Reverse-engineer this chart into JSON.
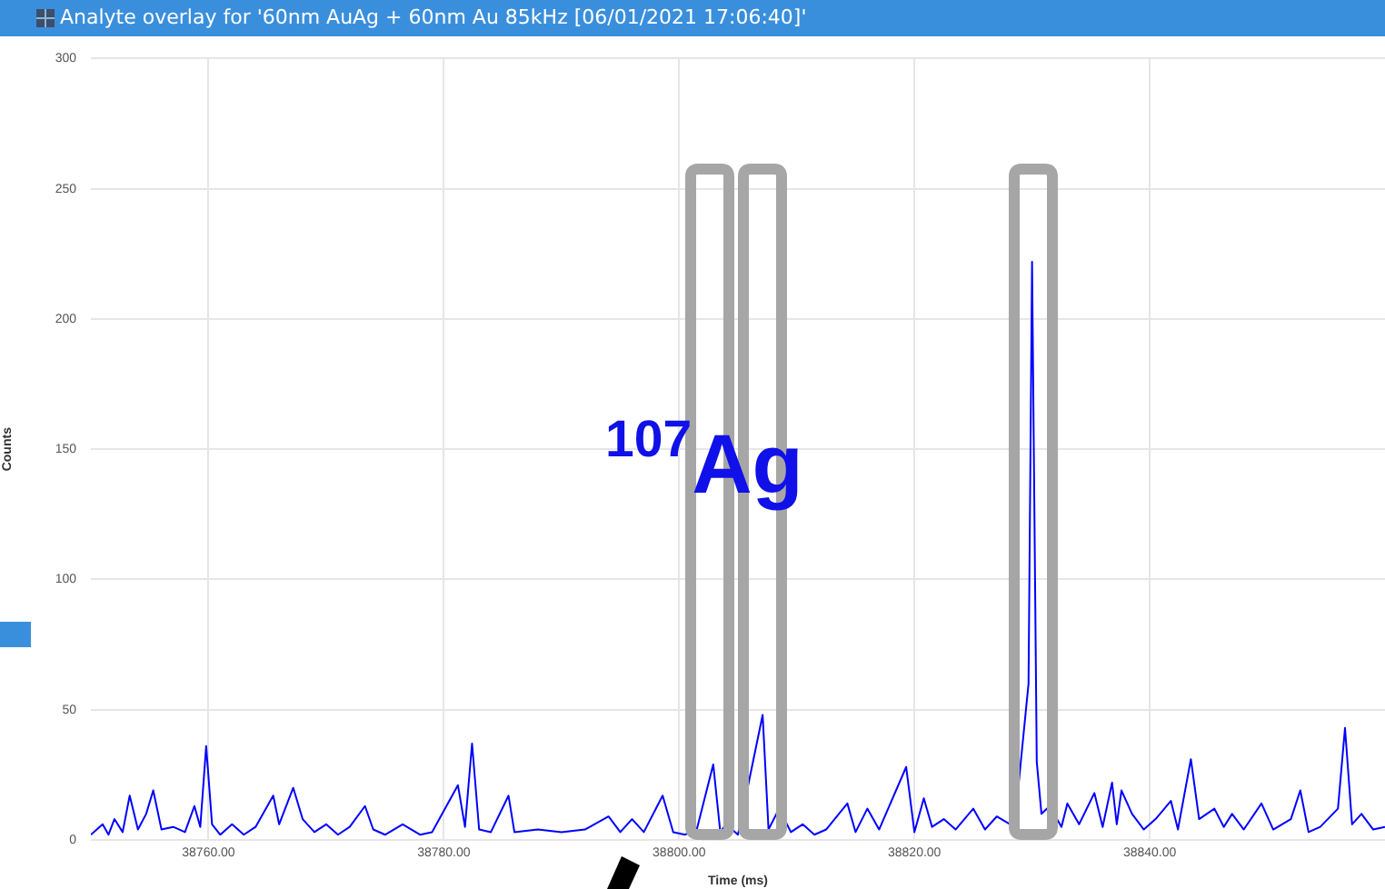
{
  "chart_data": {
    "type": "line",
    "title": "Analyte overlay for '60nm AuAg + 60nm Au 85kHz [06/01/2021 17:06:40]'",
    "xlabel": "Time (ms)",
    "ylabel": "Counts",
    "annotations": [
      "$^{107}$Ag"
    ],
    "x": [
      38750,
      38751,
      38751.5,
      38752,
      38752.7,
      38753.3,
      38754,
      38754.7,
      38755.3,
      38756,
      38757,
      38758,
      38758.8,
      38759.3,
      38759.8,
      38760.3,
      38761,
      38762,
      38763,
      38764,
      38765.5,
      38766,
      38767.2,
      38768,
      38769,
      38770,
      38771,
      38772,
      38773.3,
      38774,
      38775,
      38776.5,
      38778,
      38779,
      38781.2,
      38781.8,
      38782.4,
      38783,
      38784,
      38785.5,
      38786,
      38788,
      38790,
      38792,
      38794,
      38795,
      38796,
      38797,
      38798.6,
      38799.5,
      38800.5,
      38801.5,
      38802.9,
      38803.5,
      38804,
      38805,
      38807.1,
      38807.6,
      38808.5,
      38809.5,
      38810.5,
      38811.5,
      38812.5,
      38814.3,
      38815,
      38816,
      38817,
      38819.3,
      38820,
      38820.8,
      38821.5,
      38822.5,
      38823.5,
      38825,
      38826,
      38827,
      38828.5,
      38829.7,
      38830,
      38830.4,
      38830.8,
      38831.5,
      38832.5,
      38833,
      38834,
      38835.3,
      38836,
      38836.8,
      38837.2,
      38837.6,
      38838.5,
      38839.5,
      38840.5,
      38841.8,
      38842.4,
      38843.5,
      38844.2,
      38845.5,
      38846.3,
      38847,
      38848,
      38849.5,
      38850.5,
      38852,
      38852.8,
      38853.5,
      38854.5,
      38856,
      38856.6,
      38857.2,
      38858,
      38859,
      38860
    ],
    "series": [
      {
        "color": "#0000ff",
        "values": [
          2,
          6,
          2,
          8,
          3,
          17,
          4,
          10,
          19,
          4,
          5,
          3,
          13,
          5,
          36,
          6,
          2,
          6,
          2,
          5,
          17,
          6,
          20,
          8,
          3,
          6,
          2,
          5,
          13,
          4,
          2,
          6,
          2,
          3,
          21,
          5,
          37,
          4,
          3,
          17,
          3,
          4,
          3,
          4,
          9,
          3,
          8,
          3,
          17,
          3,
          2,
          4,
          29,
          3,
          6,
          2,
          48,
          4,
          12,
          3,
          6,
          2,
          4,
          14,
          3,
          12,
          4,
          28,
          3,
          16,
          5,
          8,
          4,
          12,
          4,
          9,
          5,
          60,
          222,
          30,
          10,
          13,
          5,
          14,
          6,
          18,
          5,
          22,
          6,
          19,
          10,
          4,
          8,
          15,
          4,
          31,
          8,
          12,
          5,
          10,
          4,
          14,
          4,
          8,
          19,
          3,
          5,
          12,
          43,
          6,
          10,
          4,
          5
        ]
      }
    ],
    "xlim": [
      38750,
      38860
    ],
    "xticks": [
      {
        "value": 38760,
        "label": "38760.00"
      },
      {
        "value": 38780,
        "label": "38780.00"
      },
      {
        "value": 38800,
        "label": "38800.00"
      },
      {
        "value": 38820,
        "label": "38820.00"
      },
      {
        "value": 38840,
        "label": "38840.00"
      }
    ],
    "ylim": [
      0,
      300
    ],
    "yticks": [
      0,
      50,
      100,
      150,
      200,
      250,
      300
    ],
    "grid": true,
    "legend": false,
    "marker": "none",
    "line_style": "solid"
  }
}
